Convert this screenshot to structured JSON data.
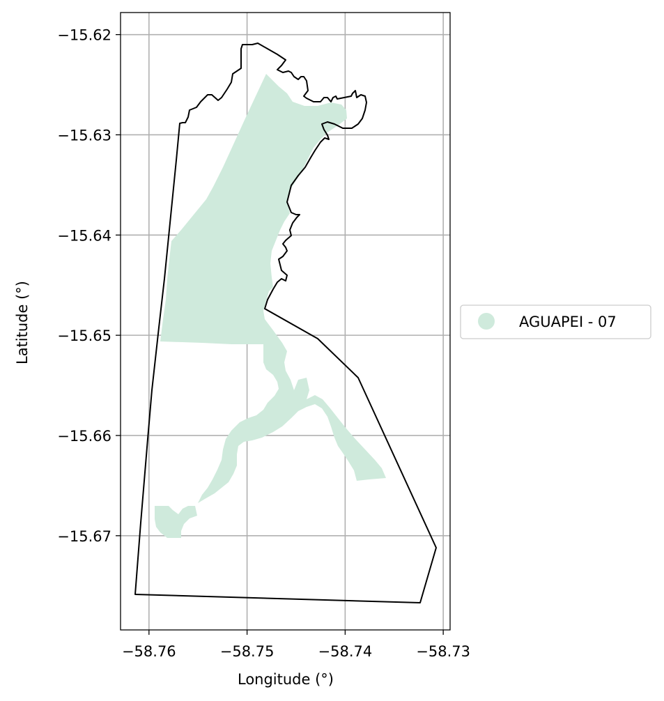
{
  "chart_data": {
    "type": "map",
    "xlabel": "Longitude (°)",
    "ylabel": "Latitude (°)",
    "xlim": [
      -58.7629,
      -58.7293
    ],
    "ylim": [
      -15.6794,
      -15.6178
    ],
    "xticks": [
      -58.76,
      -58.75,
      -58.74,
      -58.73
    ],
    "yticks": [
      -15.62,
      -15.63,
      -15.64,
      -15.65,
      -15.66,
      -15.67
    ],
    "xtick_labels": [
      "−58.76",
      "−58.75",
      "−58.74",
      "−58.73"
    ],
    "ytick_labels": [
      "−15.62",
      "−15.63",
      "−15.64",
      "−15.65",
      "−15.66",
      "−15.67"
    ],
    "grid": true,
    "legend_position": "right",
    "legend": [
      {
        "label": "AGUAPEI - 07",
        "color": "#cfeadc"
      }
    ],
    "colors": {
      "fill": "#cfeadc",
      "outline": "#000000",
      "grid": "#b0b0b0"
    }
  }
}
